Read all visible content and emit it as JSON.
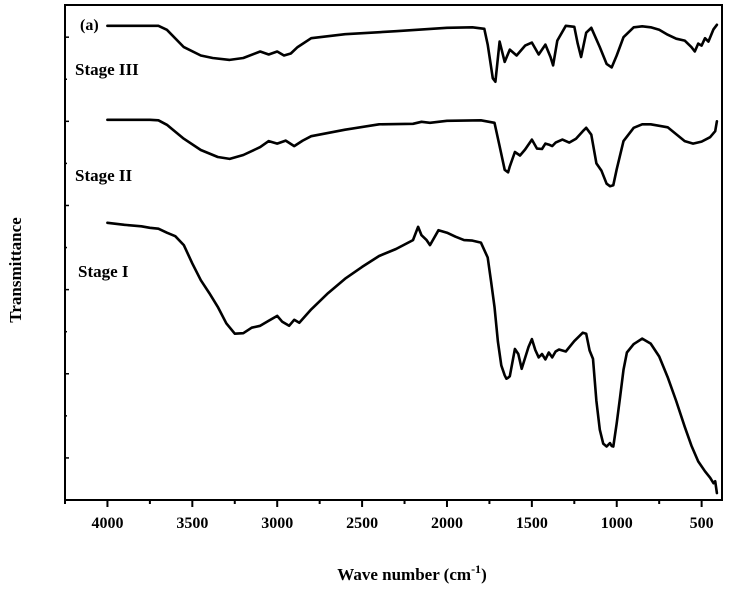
{
  "chart_data": {
    "type": "line",
    "panel_label": "(a)",
    "xlabel_main": "Wave number (cm",
    "xlabel_sup": "-1",
    "xlabel_close": ")",
    "ylabel": "Transmittance",
    "xlim": [
      4250,
      380
    ],
    "x_reversed": true,
    "ylim": [
      0,
      100
    ],
    "y_tick_labels_shown": false,
    "x_ticks": [
      4000,
      3500,
      3000,
      2500,
      2000,
      1500,
      1000,
      500
    ],
    "x_tick_labels": [
      "4000",
      "3500",
      "3000",
      "2500",
      "2000",
      "1500",
      "1000",
      "500"
    ],
    "grid": false,
    "line_color": "#000000",
    "series": [
      {
        "name": "Stage III",
        "x": [
          4000,
          3700,
          3650,
          3550,
          3450,
          3380,
          3280,
          3200,
          3100,
          3050,
          3000,
          2960,
          2920,
          2880,
          2800,
          2600,
          2300,
          2000,
          1850,
          1780,
          1760,
          1730,
          1715,
          1690,
          1660,
          1630,
          1590,
          1540,
          1500,
          1460,
          1420,
          1390,
          1375,
          1350,
          1300,
          1250,
          1230,
          1210,
          1180,
          1150,
          1100,
          1060,
          1030,
          1000,
          960,
          900,
          850,
          800,
          750,
          700,
          650,
          600,
          560,
          540,
          520,
          500,
          480,
          460,
          430,
          410
        ],
        "y": [
          95.8,
          95.8,
          95.0,
          91.5,
          89.8,
          89.3,
          88.9,
          89.3,
          90.6,
          90.0,
          90.6,
          89.8,
          90.2,
          91.5,
          93.3,
          94.1,
          94.7,
          95.4,
          95.5,
          95.2,
          92.0,
          85.2,
          84.5,
          92.6,
          88.5,
          91.0,
          89.8,
          91.8,
          92.4,
          90.0,
          92.0,
          89.5,
          87.8,
          92.8,
          95.8,
          95.6,
          92.2,
          89.5,
          94.4,
          95.4,
          91.5,
          88.1,
          87.4,
          89.8,
          93.5,
          95.5,
          95.7,
          95.5,
          95.0,
          94.0,
          93.2,
          92.8,
          91.5,
          90.6,
          92.2,
          91.8,
          93.3,
          92.6,
          95.1,
          96.0
        ]
      },
      {
        "name": "Stage II",
        "x": [
          4000,
          3750,
          3700,
          3650,
          3550,
          3450,
          3350,
          3280,
          3200,
          3100,
          3050,
          3000,
          2950,
          2900,
          2850,
          2800,
          2600,
          2400,
          2200,
          2150,
          2100,
          2000,
          1800,
          1720,
          1690,
          1660,
          1640,
          1630,
          1600,
          1570,
          1540,
          1500,
          1470,
          1440,
          1420,
          1400,
          1380,
          1360,
          1320,
          1280,
          1240,
          1200,
          1180,
          1150,
          1120,
          1090,
          1060,
          1040,
          1020,
          1000,
          960,
          900,
          850,
          800,
          700,
          600,
          550,
          500,
          450,
          420,
          410
        ],
        "y": [
          76.8,
          76.8,
          76.7,
          75.8,
          73.0,
          70.7,
          69.3,
          68.9,
          69.7,
          71.3,
          72.5,
          72.0,
          72.6,
          71.5,
          72.6,
          73.5,
          74.8,
          75.9,
          76.0,
          76.4,
          76.2,
          76.6,
          76.7,
          76.2,
          71.5,
          66.7,
          66.2,
          67.4,
          70.3,
          69.6,
          70.8,
          72.8,
          71.0,
          70.9,
          72.0,
          71.8,
          71.5,
          72.2,
          72.8,
          72.2,
          73.0,
          74.5,
          75.2,
          73.8,
          68.0,
          66.5,
          63.9,
          63.4,
          63.6,
          66.8,
          72.5,
          75.2,
          75.9,
          75.9,
          75.3,
          72.5,
          72.0,
          72.4,
          73.3,
          74.5,
          76.5
        ]
      },
      {
        "name": "Stage I",
        "x": [
          4000,
          3900,
          3800,
          3750,
          3700,
          3650,
          3600,
          3550,
          3500,
          3450,
          3400,
          3350,
          3300,
          3250,
          3200,
          3150,
          3100,
          3050,
          3000,
          2970,
          2930,
          2900,
          2870,
          2800,
          2700,
          2600,
          2500,
          2400,
          2300,
          2200,
          2170,
          2150,
          2120,
          2100,
          2050,
          2000,
          1950,
          1900,
          1850,
          1800,
          1760,
          1740,
          1720,
          1700,
          1680,
          1660,
          1650,
          1640,
          1630,
          1600,
          1580,
          1560,
          1520,
          1500,
          1480,
          1460,
          1440,
          1420,
          1400,
          1380,
          1360,
          1340,
          1300,
          1250,
          1200,
          1180,
          1160,
          1140,
          1120,
          1100,
          1080,
          1060,
          1040,
          1030,
          1020,
          1000,
          980,
          960,
          940,
          900,
          850,
          800,
          750,
          700,
          650,
          600,
          560,
          520,
          480,
          450,
          430,
          420,
          410
        ],
        "y": [
          56.0,
          55.6,
          55.3,
          55.0,
          54.8,
          54.0,
          53.3,
          51.5,
          47.8,
          44.4,
          41.8,
          39.0,
          35.7,
          33.6,
          33.7,
          34.8,
          35.2,
          36.2,
          37.2,
          36.0,
          35.2,
          36.4,
          35.8,
          38.5,
          41.8,
          44.7,
          47.1,
          49.3,
          50.7,
          52.5,
          55.2,
          53.5,
          52.5,
          51.5,
          54.5,
          54.0,
          53.2,
          52.5,
          52.4,
          52.0,
          49.0,
          44.1,
          39.0,
          32.0,
          27.2,
          25.2,
          24.5,
          24.7,
          25.0,
          30.5,
          29.5,
          26.5,
          30.9,
          32.5,
          30.3,
          28.8,
          29.5,
          28.4,
          29.8,
          28.8,
          30.0,
          30.4,
          30.0,
          32.1,
          33.8,
          33.6,
          30.2,
          28.5,
          20.0,
          14.2,
          11.4,
          10.8,
          11.5,
          10.9,
          10.8,
          15.5,
          20.8,
          26.3,
          29.8,
          31.5,
          32.6,
          31.6,
          29.0,
          24.8,
          20.0,
          14.8,
          11.0,
          7.8,
          5.8,
          4.5,
          3.4,
          3.8,
          1.4
        ]
      }
    ]
  },
  "series_labels": [
    "Stage III",
    "Stage II",
    "Stage I"
  ]
}
